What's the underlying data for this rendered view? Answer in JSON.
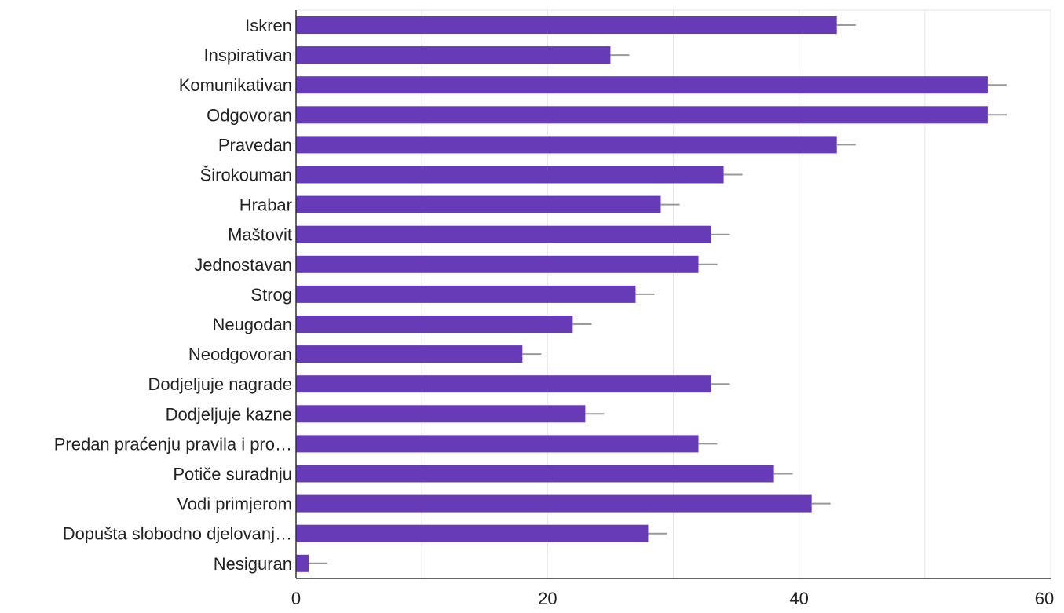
{
  "chart_data": {
    "type": "bar",
    "orientation": "horizontal",
    "categories": [
      "Iskren",
      "Inspirativan",
      "Komunikativan",
      "Odgovoran",
      "Pravedan",
      "Širokouman",
      "Hrabar",
      "Maštovit",
      "Jednostavan",
      "Strog",
      "Neugodan",
      "Neodgovoran",
      "Dodjeljuje nagrade",
      "Dodjeljuje kazne",
      "Predan praćenju pravila i pro…",
      "Potiče suradnju",
      "Vodi primjerom",
      "Dopušta slobodno djelovanj…",
      "Nesiguran"
    ],
    "values": [
      43,
      25,
      55,
      55,
      43,
      34,
      29,
      33,
      32,
      27,
      22,
      18,
      33,
      23,
      32,
      38,
      41,
      28,
      1
    ],
    "error_bars": true,
    "xlim": [
      0,
      60
    ],
    "x_ticks": [
      "0",
      "20",
      "40",
      "60"
    ],
    "grid": true,
    "colors": {
      "bar": "#673ab7",
      "error_bar": "#999999",
      "grid": "#e6e6e6",
      "axis": "#333333"
    }
  }
}
